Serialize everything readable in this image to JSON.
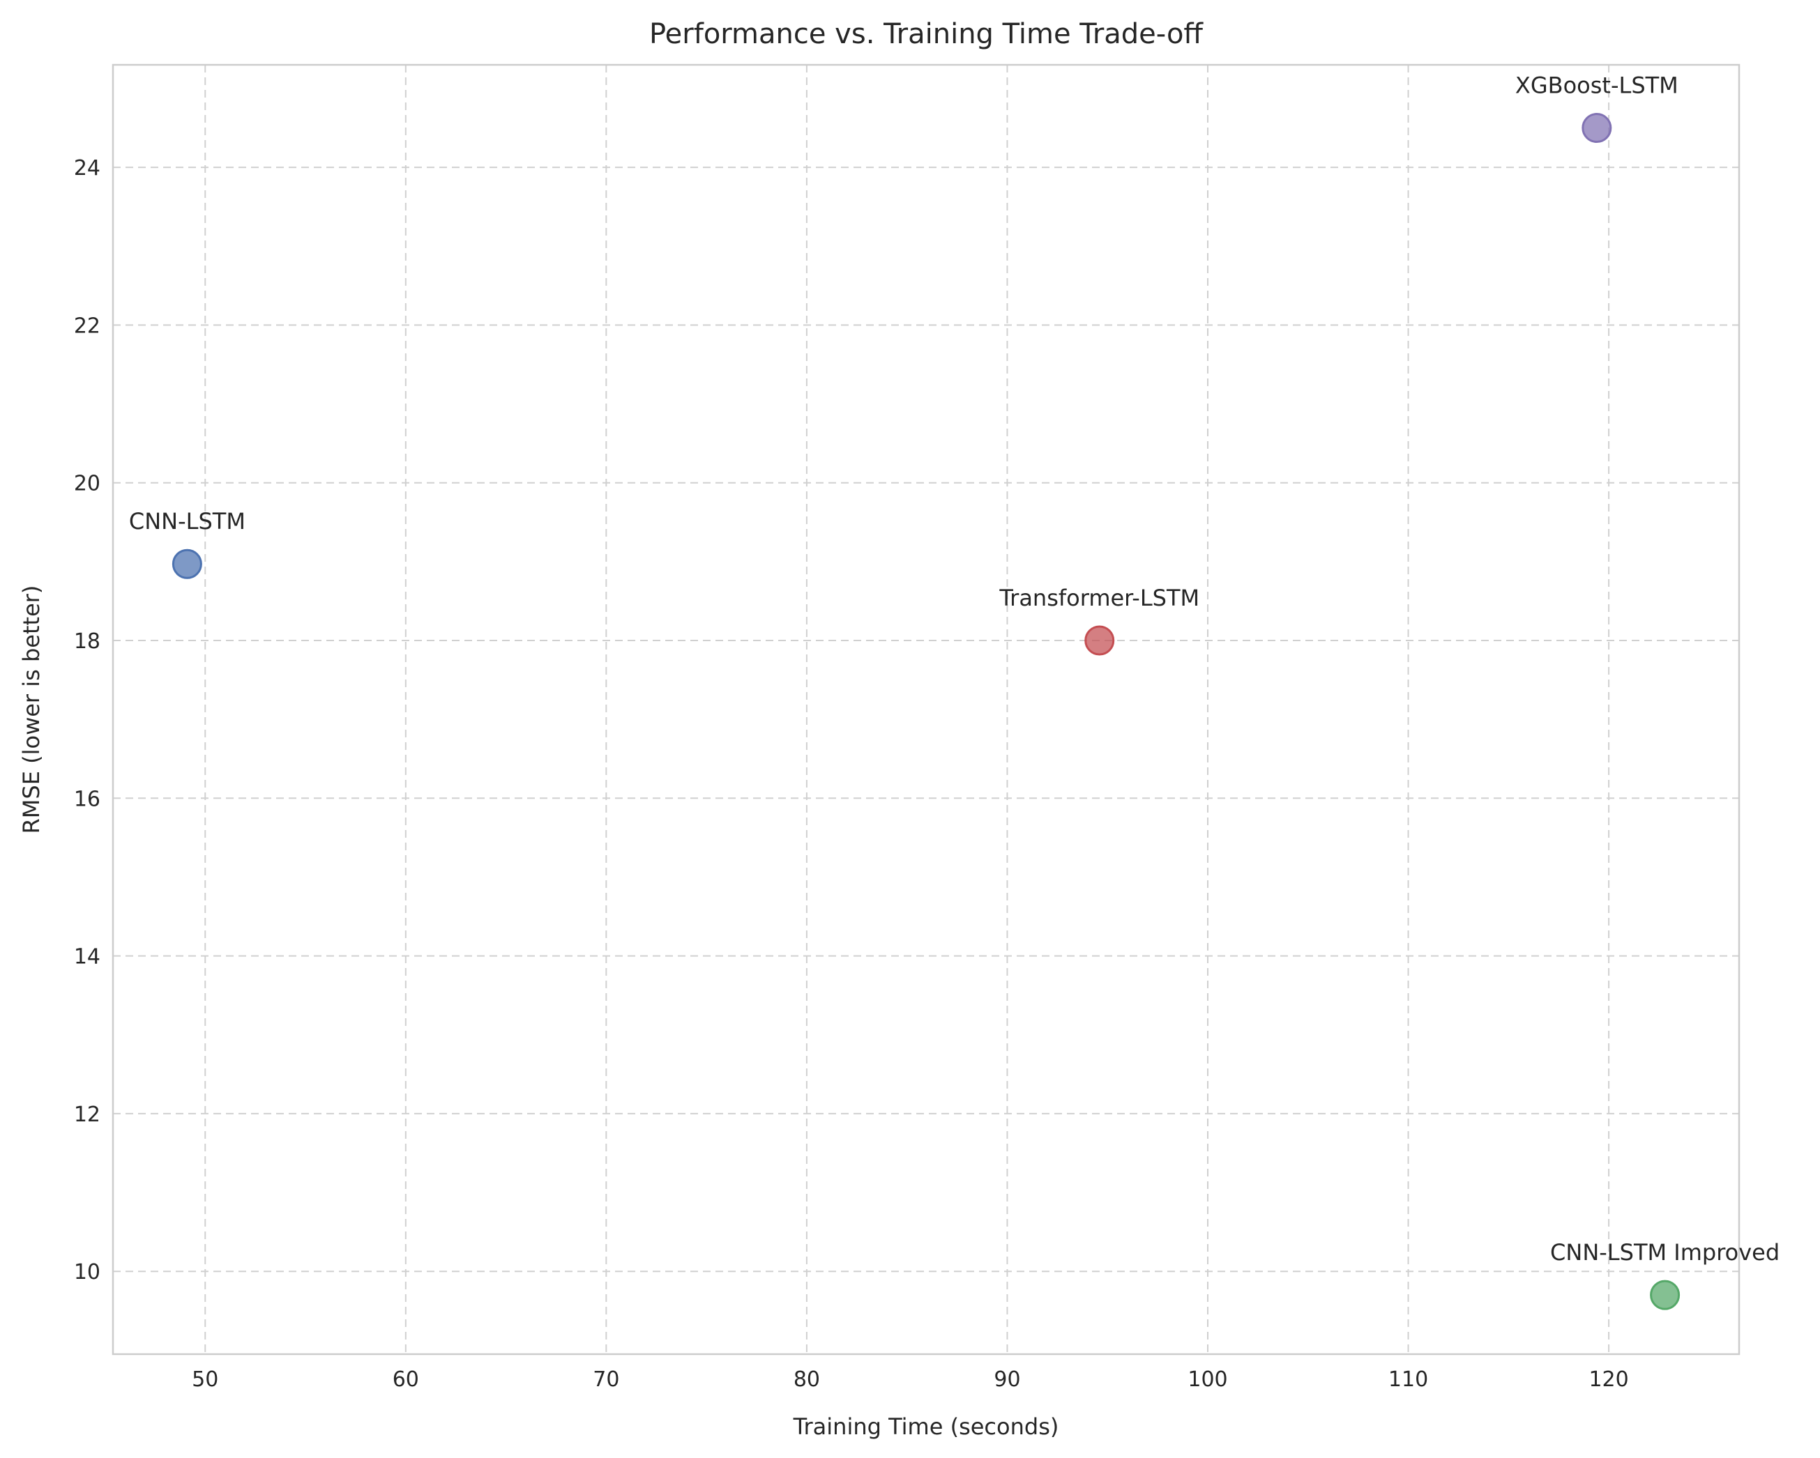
{
  "chart_data": {
    "type": "scatter",
    "title": "Performance vs. Training Time Trade-off",
    "xlabel": "Training Time (seconds)",
    "ylabel": "RMSE (lower is better)",
    "xlim": [
      45.4,
      126.5
    ],
    "ylim": [
      8.95,
      25.3
    ],
    "xticks": [
      50,
      60,
      70,
      80,
      90,
      100,
      110,
      120
    ],
    "yticks": [
      10,
      12,
      14,
      16,
      18,
      20,
      22,
      24
    ],
    "grid": true,
    "points": [
      {
        "name": "CNN-LSTM",
        "x": 49.1,
        "y": 18.97,
        "color": "#4c72b0"
      },
      {
        "name": "Transformer-LSTM",
        "x": 94.6,
        "y": 18.0,
        "color": "#c44e52"
      },
      {
        "name": "XGBoost-LSTM",
        "x": 119.4,
        "y": 24.5,
        "color": "#8172b3"
      },
      {
        "name": "CNN-LSTM Improved",
        "x": 122.8,
        "y": 9.7,
        "color": "#55a868"
      }
    ]
  }
}
